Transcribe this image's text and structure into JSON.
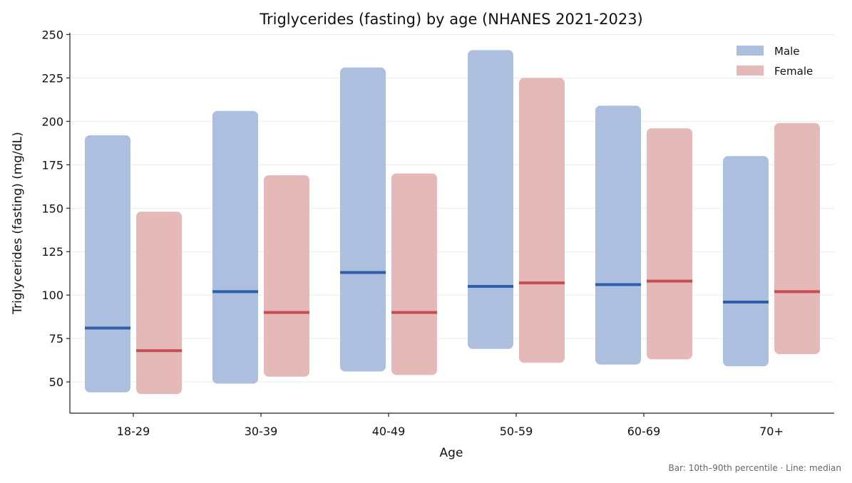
{
  "chart_data": {
    "type": "bar",
    "title": "Triglycerides (fasting) by age (NHANES 2021-2023)",
    "xlabel": "Age",
    "ylabel": "Triglycerides (fasting) (mg/dL)",
    "categories": [
      "18-29",
      "30-39",
      "40-49",
      "50-59",
      "60-69",
      "70+"
    ],
    "ylim": [
      32,
      251
    ],
    "yticks": [
      50,
      75,
      100,
      125,
      150,
      175,
      200,
      225,
      250
    ],
    "grid": "horizontal",
    "legend_position": "top-right",
    "series": [
      {
        "name": "Male",
        "color": "#adbfdf",
        "median_color": "#2f5ea8",
        "p10": [
          44,
          49,
          56,
          69,
          60,
          59
        ],
        "p90": [
          192,
          206,
          231,
          241,
          209,
          180
        ],
        "median": [
          81,
          102,
          113,
          105,
          106,
          96
        ]
      },
      {
        "name": "Female",
        "color": "#e6b9b9",
        "median_color": "#c44e52",
        "p10": [
          43,
          53,
          54,
          61,
          63,
          66
        ],
        "p90": [
          148,
          169,
          170,
          225,
          196,
          199
        ],
        "median": [
          68,
          90,
          90,
          107,
          108,
          102
        ]
      }
    ],
    "annotation": "Bar: 10th–90th percentile  ·  Line: median"
  }
}
